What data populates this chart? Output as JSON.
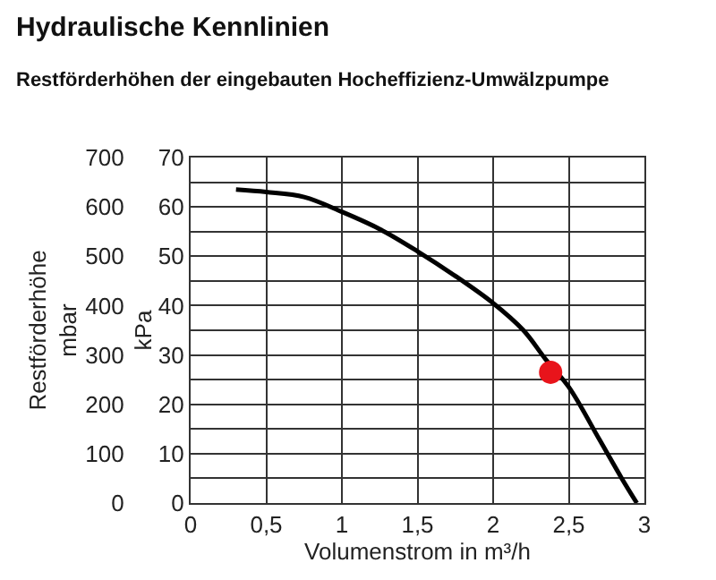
{
  "chart_data": {
    "type": "line",
    "title": "Hydraulische Kennlinien",
    "subtitle": "Restförderhöhen der eingebauten Hocheffizienz-Umwälzpumpe",
    "xlabel": "Volumenstrom in m³/h",
    "ylabel": "kPa",
    "y2label": "Restförderhöhe\nmbar",
    "series": [
      {
        "color": "#000000",
        "x": [
          0.3,
          0.5,
          0.75,
          1.0,
          1.25,
          1.5,
          1.75,
          2.0,
          2.2,
          2.35,
          2.5,
          2.7,
          2.85,
          2.95
        ],
        "values": [
          63.5,
          63,
          62,
          59,
          55.5,
          51,
          46,
          40.5,
          35,
          29,
          23.5,
          13,
          5,
          0
        ]
      },
      {
        "type": "scatter",
        "color": "#e8141b",
        "x": [
          2.38
        ],
        "values": [
          26.5
        ],
        "marker": "circle"
      }
    ],
    "xlim": [
      0,
      3
    ],
    "xticks": [
      0,
      {
        "value": 0.5,
        "label": "0,5"
      },
      1,
      {
        "value": 1.5,
        "label": "1,5"
      },
      2,
      {
        "value": 2.5,
        "label": "2,5"
      },
      3
    ],
    "ylim": [
      0,
      70
    ],
    "yticks": [
      0,
      10,
      20,
      30,
      40,
      50,
      60,
      70
    ],
    "y2lim": [
      0,
      700
    ],
    "y2ticks": [
      0,
      100,
      200,
      300,
      400,
      500,
      600,
      700
    ],
    "grid": true,
    "legend": false
  }
}
